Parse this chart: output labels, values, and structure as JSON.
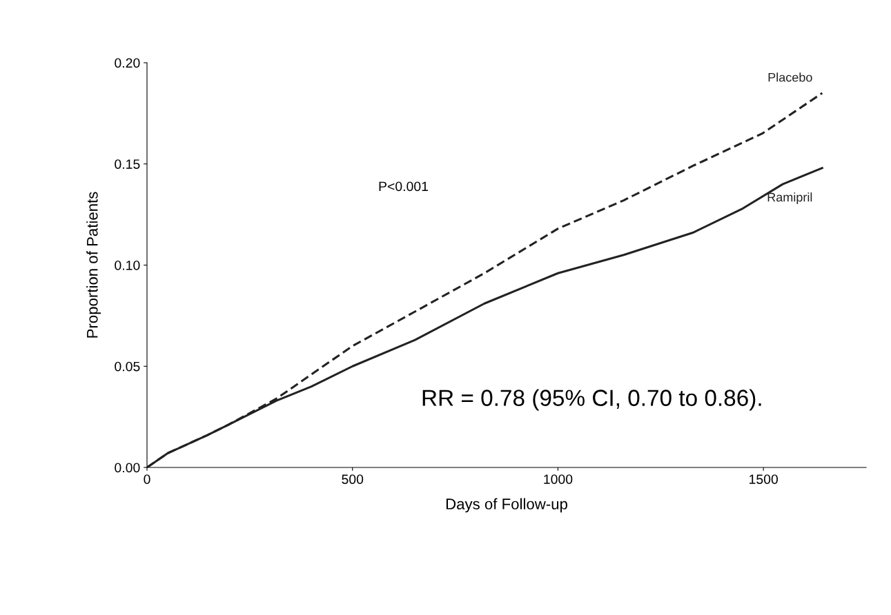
{
  "chart_data": {
    "type": "line",
    "xlabel": "Days of Follow-up",
    "ylabel": "Proportion of Patients",
    "xlim": [
      0,
      1750
    ],
    "ylim": [
      0,
      0.2
    ],
    "xticks": [
      0,
      500,
      1000,
      1500
    ],
    "yticks": [
      {
        "value": 0,
        "label": "0.00"
      },
      {
        "value": 0.05,
        "label": "0.05"
      },
      {
        "value": 0.1,
        "label": "0.10"
      },
      {
        "value": 0.15,
        "label": "0.15"
      },
      {
        "value": 0.2,
        "label": "0.20"
      }
    ],
    "grid": false,
    "legend": false,
    "marker": "none",
    "series": [
      {
        "name": "Placebo",
        "color": "#222222",
        "line_style": "dashed",
        "x": [
          0,
          50,
          147,
          197,
          315,
          400,
          500,
          652,
          821,
          1000,
          1160,
          1328,
          1497,
          1643
        ],
        "values": [
          0,
          0.007,
          0.016,
          0.021,
          0.034,
          0.046,
          0.06,
          0.077,
          0.096,
          0.118,
          0.132,
          0.149,
          0.165,
          0.185
        ]
      },
      {
        "name": "Ramipril",
        "color": "#222222",
        "line_style": "solid",
        "x": [
          0,
          50,
          147,
          197,
          315,
          400,
          500,
          652,
          821,
          1000,
          1160,
          1328,
          1450,
          1547,
          1643
        ],
        "values": [
          0,
          0.007,
          0.016,
          0.021,
          0.033,
          0.04,
          0.05,
          0.063,
          0.081,
          0.096,
          0.105,
          0.116,
          0.128,
          0.14,
          0.148
        ]
      }
    ],
    "annotations": [
      {
        "text": "P<0.001"
      },
      {
        "text": "RR = 0.78 (95% CI, 0.70 to 0.86)."
      }
    ]
  }
}
